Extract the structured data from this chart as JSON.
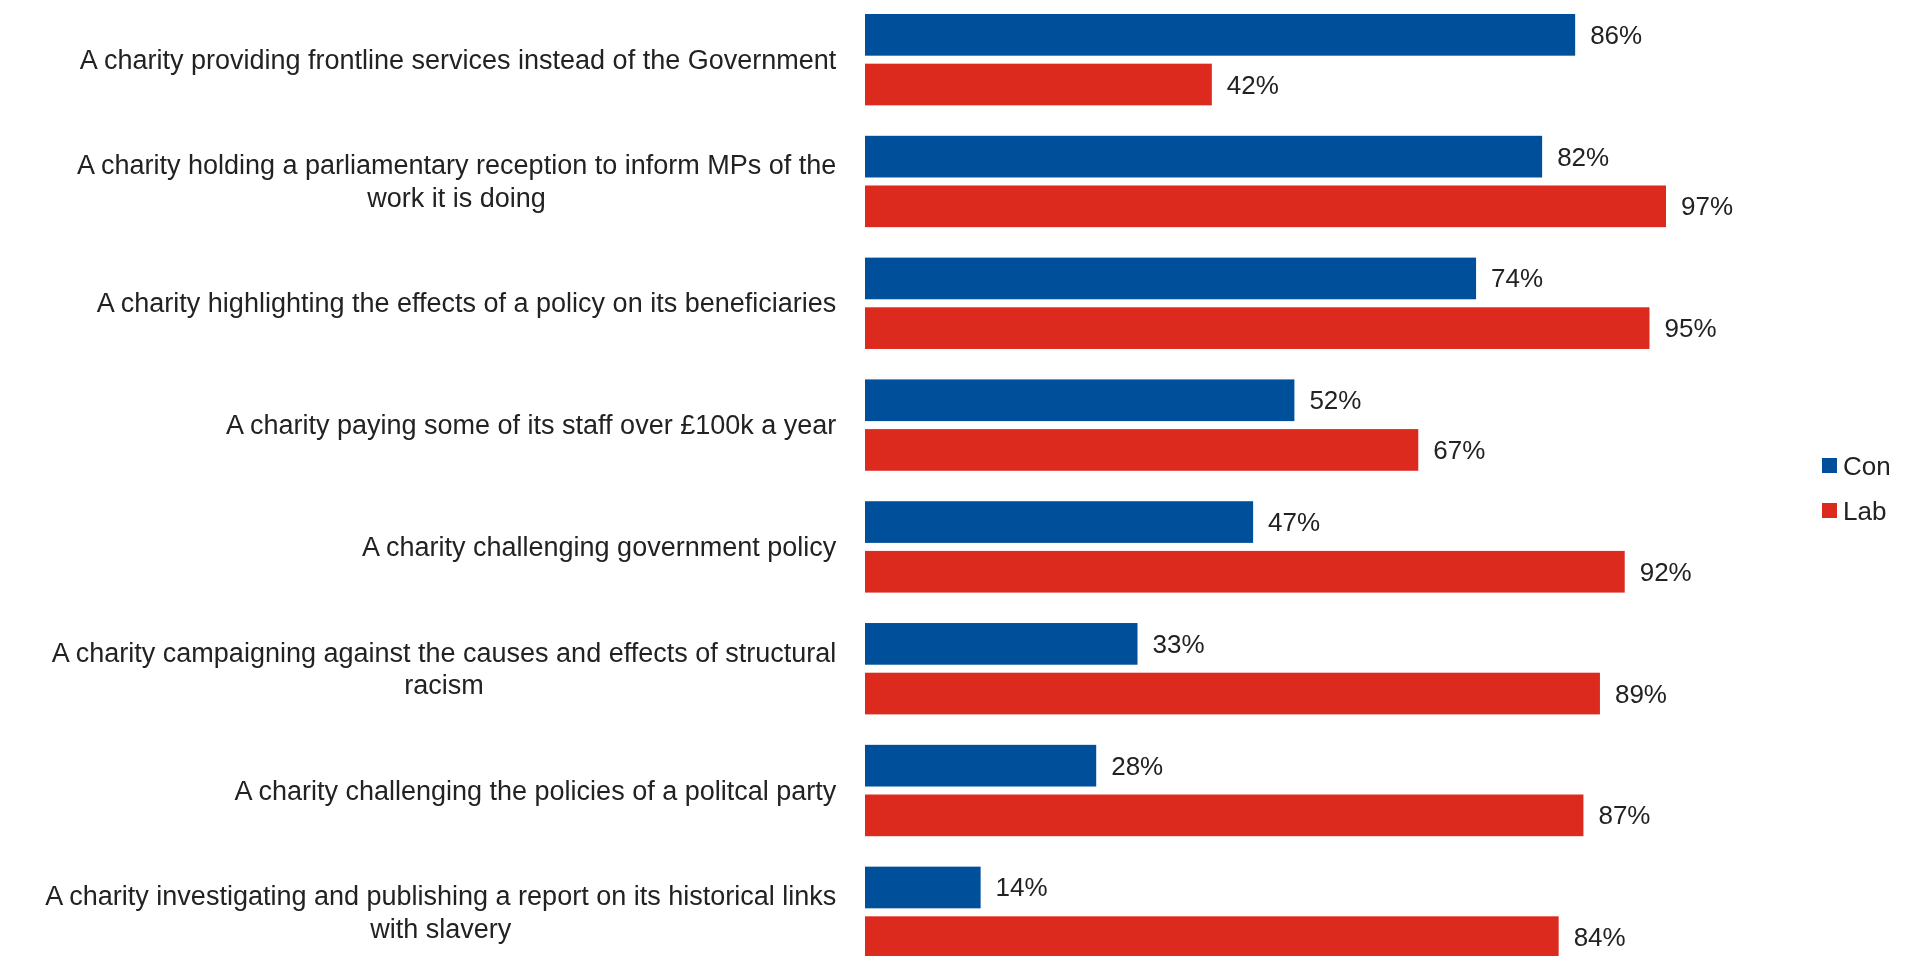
{
  "chart_data": {
    "type": "bar",
    "orientation": "horizontal",
    "categories": [
      "A charity providing frontline services instead of the Government",
      "A charity holding a parliamentary reception to inform MPs of the work it is doing",
      "A charity highlighting the effects of a policy on its beneficiaries",
      "A charity paying some of its staff over £100k a year",
      "A charity challenging government policy",
      "A charity campaigning against the causes and effects of structural racism",
      "A charity challenging the policies of a politcal party",
      "A charity investigating and publishing a report on its historical links with slavery"
    ],
    "series": [
      {
        "name": "Con",
        "color": "#004f9b",
        "values": [
          86,
          82,
          74,
          52,
          47,
          33,
          28,
          14
        ],
        "value_labels": [
          "86%",
          "82%",
          "74%",
          "52%",
          "47%",
          "33%",
          "28%",
          "14%"
        ]
      },
      {
        "name": "Lab",
        "color": "#dc2a1f",
        "values": [
          42,
          97,
          95,
          67,
          92,
          89,
          87,
          84
        ],
        "value_labels": [
          "42%",
          "97%",
          "95%",
          "67%",
          "92%",
          "89%",
          "87%",
          "84%"
        ]
      }
    ],
    "tick_labels": "y",
    "legend": "right"
  }
}
